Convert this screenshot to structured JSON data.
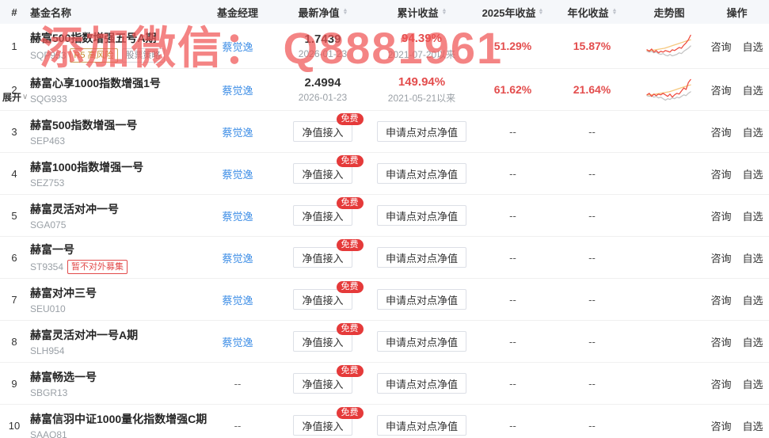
{
  "watermark": {
    "text": "添加微信： Q8881961",
    "color": "#f05555"
  },
  "colors": {
    "accent_red": "#e34d4d",
    "link_blue": "#3e8ee6",
    "badge_red": "#e53a3a",
    "header_bg": "#f5f7fa",
    "tag_orange": "#c08a2e"
  },
  "table": {
    "headers": [
      {
        "label": "#",
        "sortable": false
      },
      {
        "label": "基金名称",
        "sortable": false
      },
      {
        "label": "基金经理",
        "sortable": false
      },
      {
        "label": "最新净值",
        "sortable": true
      },
      {
        "label": "累计收益",
        "sortable": true
      },
      {
        "label": "2025年收益",
        "sortable": true
      },
      {
        "label": "年化收益",
        "sortable": true
      },
      {
        "label": "走势图",
        "sortable": false
      },
      {
        "label": "操作",
        "sortable": false
      }
    ],
    "buttons": {
      "net_access": "净值接入",
      "free": "免费",
      "p2p": "申请点对点净值"
    },
    "ops": {
      "consult": "咨询",
      "favorite": "自选"
    },
    "expand_label": "展开",
    "rows": [
      {
        "num": "1",
        "name": "赫富500指数增强五号A期",
        "code": "SQP953",
        "tags": [
          {
            "label": "R5 高风险"
          },
          {
            "label": "股票策略"
          }
        ],
        "manager": "蔡觉逸",
        "net_value": "1.7439",
        "net_date": "2026-01-23",
        "cum_return": "94.39%",
        "cum_since": "2021-07-20以来",
        "y2025": "51.29%",
        "annual": "15.87%"
      },
      {
        "num": "2",
        "name": "赫富心享1000指数增强1号",
        "code": "SQG933",
        "manager": "蔡觉逸",
        "net_value": "2.4994",
        "net_date": "2026-01-23",
        "cum_return": "149.94%",
        "cum_since": "2021-05-21以来",
        "y2025": "61.62%",
        "annual": "21.64%"
      },
      {
        "num": "3",
        "name": "赫富500指数增强一号",
        "code": "SEP463",
        "manager": "蔡觉逸",
        "y2025": "--",
        "annual": "--"
      },
      {
        "num": "4",
        "name": "赫富1000指数增强一号",
        "code": "SEZ753",
        "manager": "蔡觉逸",
        "y2025": "--",
        "annual": "--"
      },
      {
        "num": "5",
        "name": "赫富灵活对冲一号",
        "code": "SGA075",
        "manager": "蔡觉逸",
        "y2025": "--",
        "annual": "--"
      },
      {
        "num": "6",
        "name": "赫富一号",
        "code": "ST9354",
        "restrict_tag": "暂不对外募集",
        "manager": "蔡觉逸",
        "y2025": "--",
        "annual": "--"
      },
      {
        "num": "7",
        "name": "赫富对冲三号",
        "code": "SEU010",
        "manager": "蔡觉逸",
        "y2025": "--",
        "annual": "--"
      },
      {
        "num": "8",
        "name": "赫富灵活对冲一号A期",
        "code": "SLH954",
        "manager": "蔡觉逸",
        "y2025": "--",
        "annual": "--"
      },
      {
        "num": "9",
        "name": "赫富畅选一号",
        "code": "SBGR13",
        "manager": "--",
        "y2025": "--",
        "annual": "--"
      },
      {
        "num": "10",
        "name": "赫富信羽中证1000量化指数增强C期",
        "code": "SAAQ81",
        "manager": "--",
        "y2025": "--",
        "annual": "--"
      }
    ]
  },
  "sparklines": [
    {
      "red": "1,21 4,23 7,20 10,24 13,22 16,25 19,23 22,24 25,22 28,23 31,24 34,21 37,22 40,20 43,18 46,19 49,15 52,12 55,8 58,2",
      "orange": "1,22 6,22 12,21 18,20 24,19 30,17 36,15 42,13 48,11 54,9 58,8",
      "gray": "1,23 4,24 7,23 10,25 13,24 16,26 19,27 22,26 25,28 28,29 31,27 34,29 37,28 40,27 43,25 46,26 49,23 52,21 55,19 58,16"
    },
    {
      "red": "1,23 4,21 7,25 10,22 13,24 16,22 19,23 22,21 25,23 28,25 31,22 34,26 37,23 40,21 43,22 46,18 49,14 52,16 55,7 58,3",
      "orange": "1,23 6,23 12,22 18,21 24,20 30,19 36,17 42,15 48,13 54,11 58,10",
      "gray": "1,24 4,25 7,24 10,26 13,25 16,27 19,26 22,28 25,30 28,28 31,29 34,27 37,28 40,26 43,27 46,25 49,23 52,24 55,21 58,19"
    }
  ]
}
